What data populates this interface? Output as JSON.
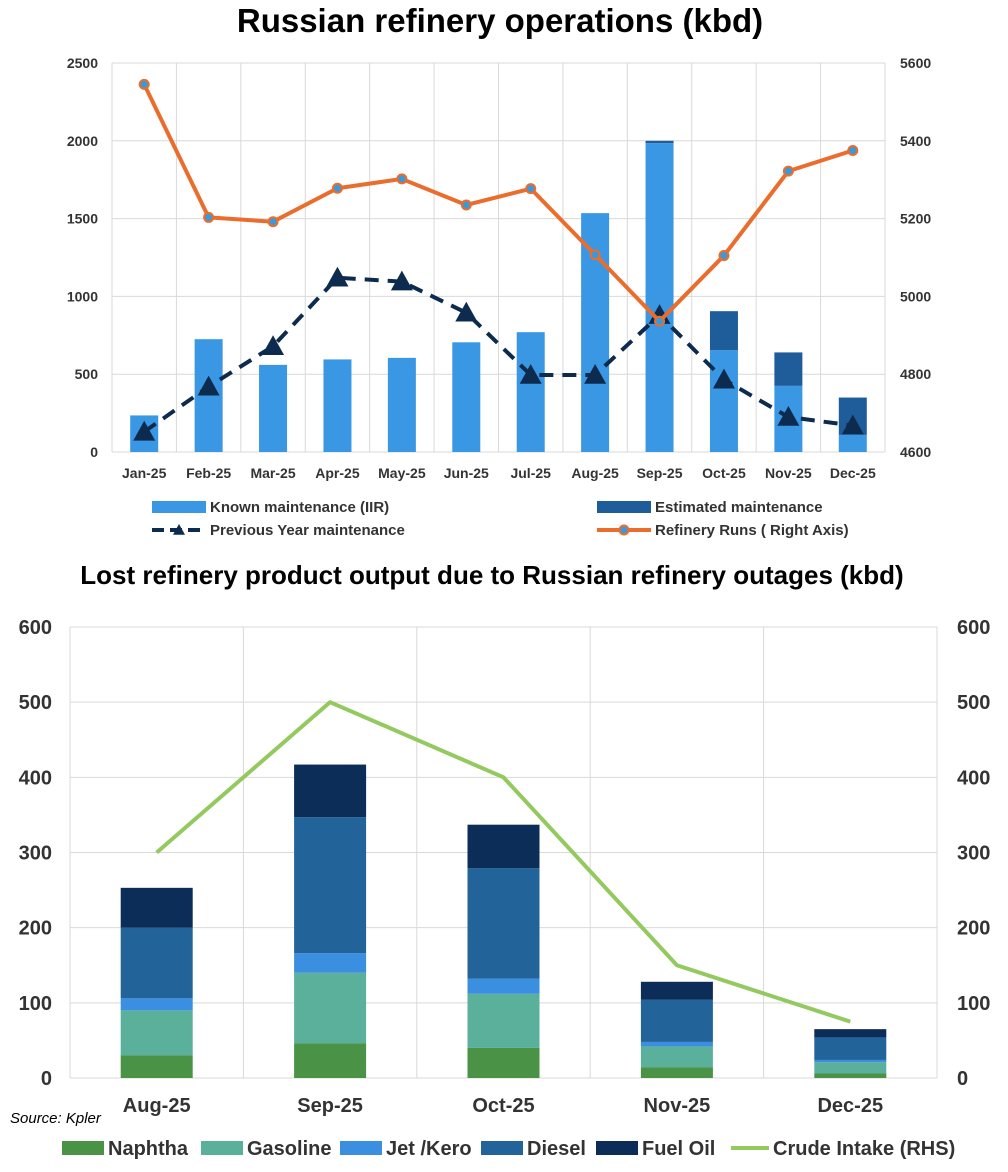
{
  "source": "Source: Kpler",
  "chart_data": [
    {
      "type": "bar",
      "title": "Russian refinery operations (kbd)",
      "categories": [
        "Jan-25",
        "Feb-25",
        "Mar-25",
        "Apr-25",
        "May-25",
        "Jun-25",
        "Jul-25",
        "Aug-25",
        "Sep-25",
        "Oct-25",
        "Nov-25",
        "Dec-25"
      ],
      "ylim": [
        0,
        2500
      ],
      "yticks": [
        "0",
        "500",
        "1000",
        "1500",
        "2000",
        "2500"
      ],
      "y2lim": [
        4600,
        5600
      ],
      "y2ticks": [
        "4600",
        "4800",
        "5000",
        "5200",
        "5400",
        "5600"
      ],
      "grid": true,
      "legend_position": "bottom",
      "series": [
        {
          "name": "Known maintenance  (IIR)",
          "kind": "bar",
          "stack": "a",
          "axis": "left",
          "color": "#3a97e3",
          "values": [
            235,
            725,
            560,
            595,
            605,
            705,
            770,
            1535,
            1985,
            655,
            425,
            110
          ]
        },
        {
          "name": "Estimated maintenance",
          "kind": "bar",
          "stack": "a",
          "axis": "left",
          "color": "#1f5d9a",
          "values": [
            0,
            0,
            0,
            0,
            0,
            0,
            0,
            0,
            15,
            250,
            215,
            240
          ]
        },
        {
          "name": "Previous Year maintenance",
          "kind": "line",
          "axis": "left",
          "color": "#0d2b4f",
          "style": "dashed",
          "marker": "triangle",
          "values": [
            130,
            420,
            680,
            1120,
            1095,
            895,
            495,
            495,
            880,
            465,
            225,
            170
          ]
        },
        {
          "name": "Refinery Runs ( Right Axis)",
          "kind": "line",
          "axis": "right",
          "color": "#ea6d2d",
          "marker": "circle",
          "values": [
            5545,
            5203,
            5192,
            5278,
            5302,
            5235,
            5277,
            5107,
            4936,
            5105,
            5322,
            5375
          ]
        }
      ]
    },
    {
      "type": "bar",
      "title": "Lost refinery product output due to Russian refinery outages (kbd)",
      "categories": [
        "Aug-25",
        "Sep-25",
        "Oct-25",
        "Nov-25",
        "Dec-25"
      ],
      "ylim": [
        0,
        600
      ],
      "yticks": [
        "0",
        "100",
        "200",
        "300",
        "400",
        "500",
        "600"
      ],
      "y2lim": [
        0,
        600
      ],
      "y2ticks": [
        "0",
        "100",
        "200",
        "300",
        "400",
        "500",
        "600"
      ],
      "grid": true,
      "legend_position": "bottom",
      "series": [
        {
          "name": "Naphtha",
          "kind": "bar",
          "stack": "b",
          "color": "#4a9246",
          "values": [
            30,
            46,
            40,
            14,
            6
          ]
        },
        {
          "name": "Gasoline",
          "kind": "bar",
          "stack": "b",
          "color": "#5bb09b",
          "values": [
            60,
            94,
            72,
            28,
            15
          ]
        },
        {
          "name": "Jet /Kero",
          "kind": "bar",
          "stack": "b",
          "color": "#3a8fe0",
          "values": [
            16,
            26,
            20,
            6,
            3
          ]
        },
        {
          "name": "Diesel",
          "kind": "bar",
          "stack": "b",
          "color": "#22649a",
          "values": [
            94,
            181,
            147,
            56,
            30
          ]
        },
        {
          "name": "Fuel Oil",
          "kind": "bar",
          "stack": "b",
          "color": "#0c2d57",
          "values": [
            53,
            70,
            58,
            24,
            11
          ]
        },
        {
          "name": "Crude Intake (RHS)",
          "kind": "line",
          "axis": "right",
          "color": "#93c95f",
          "values": [
            300,
            500,
            400,
            150,
            75
          ]
        }
      ]
    }
  ]
}
